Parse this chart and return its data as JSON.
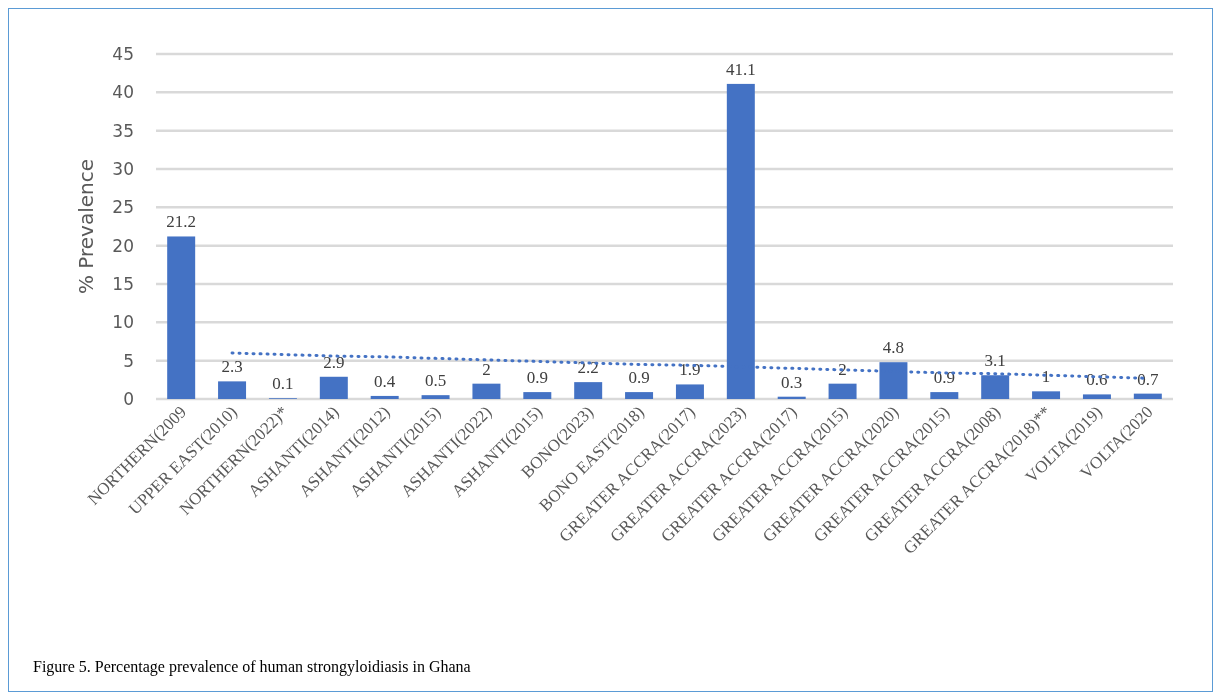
{
  "chart_data": {
    "type": "bar",
    "ylabel": "% Prevalence",
    "categories": [
      "NORTHERN(2009",
      "UPPER EAST(2010)",
      "NORTHERN(2022)*",
      "ASHANTI(2014)",
      "ASHANTI(2012)",
      "ASHANTI(2015)",
      "ASHANTI(2022)",
      "ASHANTI(2015)",
      "BONO(2023)",
      "BONO EAST(2018)",
      "GREATER ACCRA(2017)",
      "GREATER ACCRA(2023)",
      "GREATER ACCRA(2017)",
      "GREATER ACCRA(2015)",
      "GREATER ACCRA(2020)",
      "GREATER ACCRA(2015)",
      "GREATER ACCRA(2008)",
      "GREATER ACCRA(2018)**",
      "VOLTA(2019)",
      "VOLTA(2020"
    ],
    "series": [
      {
        "color": "#4472c4",
        "values": [
          21.2,
          2.3,
          0.1,
          2.9,
          0.4,
          0.5,
          2,
          0.9,
          2.2,
          0.9,
          1.9,
          41.1,
          0.3,
          2,
          4.8,
          0.9,
          3.1,
          1,
          0.6,
          0.7
        ],
        "value_labels": [
          "21.2",
          "2.3",
          "0.1",
          "2.9",
          "0.4",
          "0.5",
          "2",
          "0.9",
          "2.2",
          "0.9",
          "1.9",
          "41.1",
          "0.3",
          "2",
          "4.8",
          "0.9",
          "3.1",
          "1",
          "0.6",
          "0.7"
        ]
      },
      {
        "type": "line",
        "color": "#4472c4",
        "line_style": "dotted",
        "values": [
          null,
          6.0,
          5.8,
          5.6,
          5.5,
          5.3,
          5.1,
          4.9,
          4.7,
          4.5,
          4.4,
          4.2,
          4.0,
          3.8,
          3.6,
          3.4,
          3.3,
          3.1,
          2.9,
          2.7
        ]
      }
    ],
    "ylim": [
      0,
      45
    ],
    "yticks": [
      0,
      5,
      10,
      15,
      20,
      25,
      30,
      35,
      40,
      45
    ],
    "grid": "y",
    "annotations": [
      "Figure 5.  Percentage prevalence of human strongyloidiasis in Ghana"
    ]
  }
}
